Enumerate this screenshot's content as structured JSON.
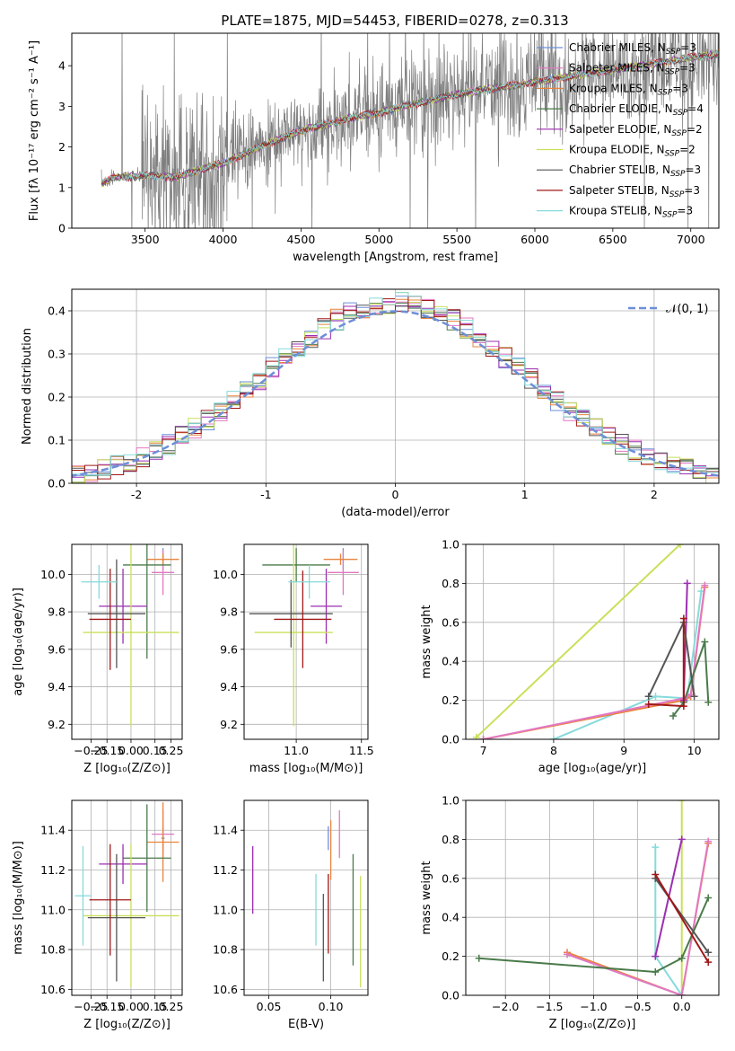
{
  "figure_title": "PLATE=1875, MJD=54453, FIBERID=0278, z=0.313",
  "series_colors": [
    "#6d8fd8",
    "#e377c2",
    "#e8843c",
    "#4a7a4a",
    "#9b2fb0",
    "#c8e05a",
    "#555555",
    "#a01818",
    "#86dada"
  ],
  "legend_entries": [
    {
      "label": "Chabrier MILES, N",
      "sub": "SSP",
      "suffix": "=3",
      "color": "#6d8fd8"
    },
    {
      "label": "Salpeter MILES, N",
      "sub": "SSP",
      "suffix": "=3",
      "color": "#e377c2"
    },
    {
      "label": "Kroupa MILES, N",
      "sub": "SSP",
      "suffix": "=3",
      "color": "#e8843c"
    },
    {
      "label": "Chabrier ELODIE, N",
      "sub": "SSP",
      "suffix": "=4",
      "color": "#4a7a4a"
    },
    {
      "label": "Salpeter ELODIE, N",
      "sub": "SSP",
      "suffix": "=2",
      "color": "#9b2fb0"
    },
    {
      "label": "Kroupa ELODIE, N",
      "sub": "SSP",
      "suffix": "=2",
      "color": "#c8e05a"
    },
    {
      "label": "Chabrier STELIB, N",
      "sub": "SSP",
      "suffix": "=3",
      "color": "#555555"
    },
    {
      "label": "Salpeter STELIB, N",
      "sub": "SSP",
      "suffix": "=3",
      "color": "#a01818"
    },
    {
      "label": "Kroupa STELIB, N",
      "sub": "SSP",
      "suffix": "=3",
      "color": "#86dada"
    }
  ],
  "chart_data": [
    {
      "id": "spectrum",
      "type": "line",
      "xlabel": "wavelength [Angstrom, rest frame]",
      "ylabel": "Flux [fλ 10⁻¹⁷ erg cm⁻² s⁻¹ A⁻¹]",
      "xlim": [
        3030,
        7180
      ],
      "ylim": [
        0,
        4.8
      ],
      "xticks": [
        3500,
        4000,
        4500,
        5000,
        5500,
        6000,
        6500,
        7000
      ],
      "yticks": [
        0,
        1,
        2,
        3,
        4
      ],
      "data_color": "#7f7f7f",
      "continuum": {
        "x": [
          3220,
          3300,
          3500,
          3700,
          3900,
          4000,
          4300,
          4500,
          4800,
          5000,
          5500,
          6000,
          6500,
          7000,
          7180
        ],
        "y": [
          1.1,
          1.25,
          1.3,
          1.25,
          1.5,
          1.6,
          2.1,
          2.4,
          2.7,
          2.85,
          3.3,
          3.6,
          3.9,
          4.2,
          4.3
        ]
      },
      "data_range": [
        3220,
        7180
      ]
    },
    {
      "id": "residuals",
      "type": "histogram",
      "xlabel": "(data-model)/error",
      "ylabel": "Normed distribution",
      "xlim": [
        -2.5,
        2.5
      ],
      "ylim": [
        0,
        0.45
      ],
      "xticks": [
        -2,
        -1,
        0,
        1,
        2
      ],
      "yticks": [
        0.0,
        0.1,
        0.2,
        0.3,
        0.4
      ],
      "legend_label": "𝒩(0, 1)",
      "bin_width": 0.1,
      "reference_curve": "normal(0,1)"
    },
    {
      "id": "age_vs_Z",
      "type": "scatter",
      "xlabel": "Z [log₁₀(Z/Z⊙)]",
      "ylabel": "age  [log₁₀(age/yr)]",
      "xlim": [
        -0.37,
        0.32
      ],
      "ylim": [
        9.12,
        10.16
      ],
      "xticks": [
        -0.25,
        -0.15,
        0.0,
        0.15,
        0.25
      ],
      "xticklabels": [
        "−0.25",
        "−0.15",
        "0.00",
        "0.15",
        "0.25"
      ],
      "yticks": [
        9.2,
        9.4,
        9.6,
        9.8,
        10.0
      ],
      "points": [
        {
          "x": 0.2,
          "y": 10.08,
          "xerr": 0.01,
          "yerr": 0.06,
          "color": "#6d8fd8"
        },
        {
          "x": 0.2,
          "y": 10.01,
          "xerr": 0.07,
          "yerr": 0.12,
          "color": "#e377c2"
        },
        {
          "x": 0.2,
          "y": 10.08,
          "xerr": 0.1,
          "yerr": 0.03,
          "color": "#e8843c"
        },
        {
          "x": 0.1,
          "y": 10.05,
          "xerr": 0.15,
          "yerr": 0.5,
          "color": "#4a7a4a"
        },
        {
          "x": -0.05,
          "y": 9.83,
          "xerr": 0.15,
          "yerr": 0.2,
          "color": "#9b2fb0"
        },
        {
          "x": 0.0,
          "y": 9.69,
          "xerr": 0.3,
          "yerr": 0.5,
          "color": "#c8e05a"
        },
        {
          "x": -0.09,
          "y": 9.79,
          "xerr": 0.18,
          "yerr": 0.29,
          "color": "#555555"
        },
        {
          "x": -0.13,
          "y": 9.76,
          "xerr": 0.13,
          "yerr": 0.27,
          "color": "#a01818"
        },
        {
          "x": -0.2,
          "y": 9.96,
          "xerr": 0.11,
          "yerr": 0.09,
          "color": "#86dada"
        }
      ]
    },
    {
      "id": "age_vs_mass",
      "type": "scatter",
      "xlabel": "mass [log₁₀(M/M⊙)]",
      "xlim": [
        10.6,
        11.55
      ],
      "ylim": [
        9.12,
        10.16
      ],
      "xticks": [
        11.0,
        11.5
      ],
      "xticklabels": [
        "11.0",
        "11.5"
      ],
      "yticks": [
        9.2,
        9.4,
        9.6,
        9.8,
        10.0
      ],
      "points": [
        {
          "x": 11.36,
          "y": 10.08,
          "xerr": 0.01,
          "yerr": 0.06,
          "color": "#6d8fd8"
        },
        {
          "x": 11.36,
          "y": 10.01,
          "xerr": 0.12,
          "yerr": 0.12,
          "color": "#e377c2"
        },
        {
          "x": 11.34,
          "y": 10.08,
          "xerr": 0.13,
          "yerr": 0.03,
          "color": "#e8843c"
        },
        {
          "x": 11.0,
          "y": 10.05,
          "xerr": 0.26,
          "yerr": 0.09,
          "color": "#4a7a4a"
        },
        {
          "x": 11.23,
          "y": 9.83,
          "xerr": 0.12,
          "yerr": 0.2,
          "color": "#9b2fb0"
        },
        {
          "x": 10.98,
          "y": 9.69,
          "xerr": 0.3,
          "yerr": 0.5,
          "color": "#c8e05a"
        },
        {
          "x": 10.96,
          "y": 9.79,
          "xerr": 0.32,
          "yerr": 0.18,
          "color": "#555555"
        },
        {
          "x": 11.05,
          "y": 9.76,
          "xerr": 0.22,
          "yerr": 0.26,
          "color": "#a01818"
        },
        {
          "x": 11.1,
          "y": 9.96,
          "xerr": 0.16,
          "yerr": 0.09,
          "color": "#86dada"
        }
      ]
    },
    {
      "id": "weight_vs_age",
      "type": "line",
      "xlabel": "age  [log₁₀(age/yr)]",
      "ylabel": "mass weight",
      "xlim": [
        6.75,
        10.35
      ],
      "ylim": [
        0,
        1.0
      ],
      "xticks": [
        7,
        8,
        9,
        10
      ],
      "yticks": [
        0.0,
        0.2,
        0.4,
        0.6,
        0.8,
        1.0
      ],
      "series": [
        {
          "color": "#c8e05a",
          "x": [
            6.9,
            9.8
          ],
          "y": [
            0.01,
            1.0
          ]
        },
        {
          "color": "#86dada",
          "x": [
            8.0,
            9.45,
            9.9,
            10.1
          ],
          "y": [
            0.0,
            0.22,
            0.21,
            0.76
          ]
        },
        {
          "color": "#e8843c",
          "x": [
            7.0,
            9.85,
            9.95,
            10.15
          ],
          "y": [
            0.0,
            0.2,
            0.22,
            0.78
          ]
        },
        {
          "color": "#e377c2",
          "x": [
            7.0,
            9.85,
            9.95,
            10.15
          ],
          "y": [
            0.0,
            0.21,
            0.23,
            0.79
          ]
        },
        {
          "color": "#4a7a4a",
          "x": [
            9.7,
            9.85,
            10.15,
            10.2
          ],
          "y": [
            0.12,
            0.19,
            0.5,
            0.19
          ]
        },
        {
          "color": "#9b2fb0",
          "x": [
            9.85,
            9.9
          ],
          "y": [
            0.2,
            0.8
          ]
        },
        {
          "color": "#555555",
          "x": [
            9.35,
            9.85,
            10.0
          ],
          "y": [
            0.22,
            0.6,
            0.22
          ]
        },
        {
          "color": "#a01818",
          "x": [
            9.35,
            9.85,
            9.85
          ],
          "y": [
            0.18,
            0.17,
            0.62
          ]
        }
      ]
    },
    {
      "id": "mass_vs_Z",
      "type": "scatter",
      "xlabel": "Z [log₁₀(Z/Z⊙)]",
      "ylabel": "mass [log₁₀(M/M⊙)]",
      "xlim": [
        -0.37,
        0.32
      ],
      "ylim": [
        10.57,
        11.55
      ],
      "xticks": [
        -0.25,
        -0.15,
        0.0,
        0.15,
        0.25
      ],
      "xticklabels": [
        "−0.25",
        "−0.15",
        "0.00",
        "0.15",
        "0.25"
      ],
      "yticks": [
        10.6,
        10.8,
        11.0,
        11.2,
        11.4
      ],
      "points": [
        {
          "x": 0.2,
          "y": 11.36,
          "xerr": 0.01,
          "yerr": 0.06,
          "color": "#6d8fd8"
        },
        {
          "x": 0.2,
          "y": 11.38,
          "xerr": 0.07,
          "yerr": 0.12,
          "color": "#e377c2"
        },
        {
          "x": 0.2,
          "y": 11.34,
          "xerr": 0.1,
          "yerr": 0.2,
          "color": "#e8843c"
        },
        {
          "x": 0.1,
          "y": 11.26,
          "xerr": 0.15,
          "yerr": 0.27,
          "color": "#4a7a4a"
        },
        {
          "x": -0.05,
          "y": 11.23,
          "xerr": 0.15,
          "yerr": 0.1,
          "color": "#9b2fb0"
        },
        {
          "x": 0.0,
          "y": 10.97,
          "xerr": 0.3,
          "yerr": 0.36,
          "color": "#c8e05a"
        },
        {
          "x": -0.09,
          "y": 10.96,
          "xerr": 0.18,
          "yerr": 0.32,
          "color": "#555555"
        },
        {
          "x": -0.13,
          "y": 11.05,
          "xerr": 0.13,
          "yerr": 0.28,
          "color": "#a01818"
        },
        {
          "x": -0.3,
          "y": 11.07,
          "xerr": 0.05,
          "yerr": 0.25,
          "color": "#86dada"
        }
      ]
    },
    {
      "id": "mass_vs_ebv",
      "type": "scatter",
      "xlabel": "E(B-V)",
      "xlim": [
        0.03,
        0.13
      ],
      "ylim": [
        10.57,
        11.55
      ],
      "xticks": [
        0.05,
        0.1
      ],
      "xticklabels": [
        "0.05",
        "0.10"
      ],
      "yticks": [
        10.6,
        10.8,
        11.0,
        11.2,
        11.4
      ],
      "points": [
        {
          "x": 0.098,
          "y": 11.36,
          "xerr": 0.0,
          "yerr": 0.06,
          "color": "#6d8fd8"
        },
        {
          "x": 0.107,
          "y": 11.38,
          "xerr": 0.0,
          "yerr": 0.12,
          "color": "#e377c2"
        },
        {
          "x": 0.1,
          "y": 11.3,
          "xerr": 0.0,
          "yerr": 0.15,
          "color": "#e8843c"
        },
        {
          "x": 0.118,
          "y": 11.0,
          "xerr": 0.0,
          "yerr": 0.28,
          "color": "#4a7a4a"
        },
        {
          "x": 0.037,
          "y": 11.15,
          "xerr": 0.0,
          "yerr": 0.17,
          "color": "#9b2fb0"
        },
        {
          "x": 0.124,
          "y": 10.89,
          "xerr": 0.0,
          "yerr": 0.28,
          "color": "#c8e05a"
        },
        {
          "x": 0.094,
          "y": 10.86,
          "xerr": 0.0,
          "yerr": 0.22,
          "color": "#555555"
        },
        {
          "x": 0.098,
          "y": 10.98,
          "xerr": 0.0,
          "yerr": 0.2,
          "color": "#a01818"
        },
        {
          "x": 0.088,
          "y": 11.0,
          "xerr": 0.0,
          "yerr": 0.18,
          "color": "#86dada"
        }
      ]
    },
    {
      "id": "weight_vs_Z",
      "type": "line",
      "xlabel": "Z [log₁₀(Z/Z⊙)]",
      "ylabel": "mass weight",
      "xlim": [
        -2.45,
        0.42
      ],
      "ylim": [
        0,
        1.0
      ],
      "xticks": [
        -2.0,
        -1.5,
        -1.0,
        -0.5,
        0.0
      ],
      "xticklabels": [
        "−2.0",
        "−1.5",
        "−1.0",
        "−0.5",
        "0.0"
      ],
      "yticks": [
        0.0,
        0.2,
        0.4,
        0.6,
        0.8,
        1.0
      ],
      "series": [
        {
          "color": "#c8e05a",
          "x": [
            0.0,
            0.0
          ],
          "y": [
            0.0,
            1.0
          ]
        },
        {
          "color": "#86dada",
          "x": [
            -0.3,
            -0.3,
            0.0,
            -1.3
          ],
          "y": [
            0.76,
            0.2,
            0.0,
            0.21
          ]
        },
        {
          "color": "#e8843c",
          "x": [
            -1.3,
            0.0,
            0.3
          ],
          "y": [
            0.22,
            0.0,
            0.78
          ]
        },
        {
          "color": "#e377c2",
          "x": [
            -1.3,
            0.0,
            0.3
          ],
          "y": [
            0.21,
            0.0,
            0.79
          ]
        },
        {
          "color": "#4a7a4a",
          "x": [
            -2.3,
            -0.3,
            0.0,
            0.3
          ],
          "y": [
            0.19,
            0.12,
            0.19,
            0.5
          ]
        },
        {
          "color": "#9b2fb0",
          "x": [
            -0.3,
            0.0
          ],
          "y": [
            0.2,
            0.8
          ]
        },
        {
          "color": "#555555",
          "x": [
            -0.3,
            0.3
          ],
          "y": [
            0.6,
            0.22
          ]
        },
        {
          "color": "#a01818",
          "x": [
            -0.3,
            0.3
          ],
          "y": [
            0.62,
            0.17
          ]
        }
      ]
    }
  ]
}
